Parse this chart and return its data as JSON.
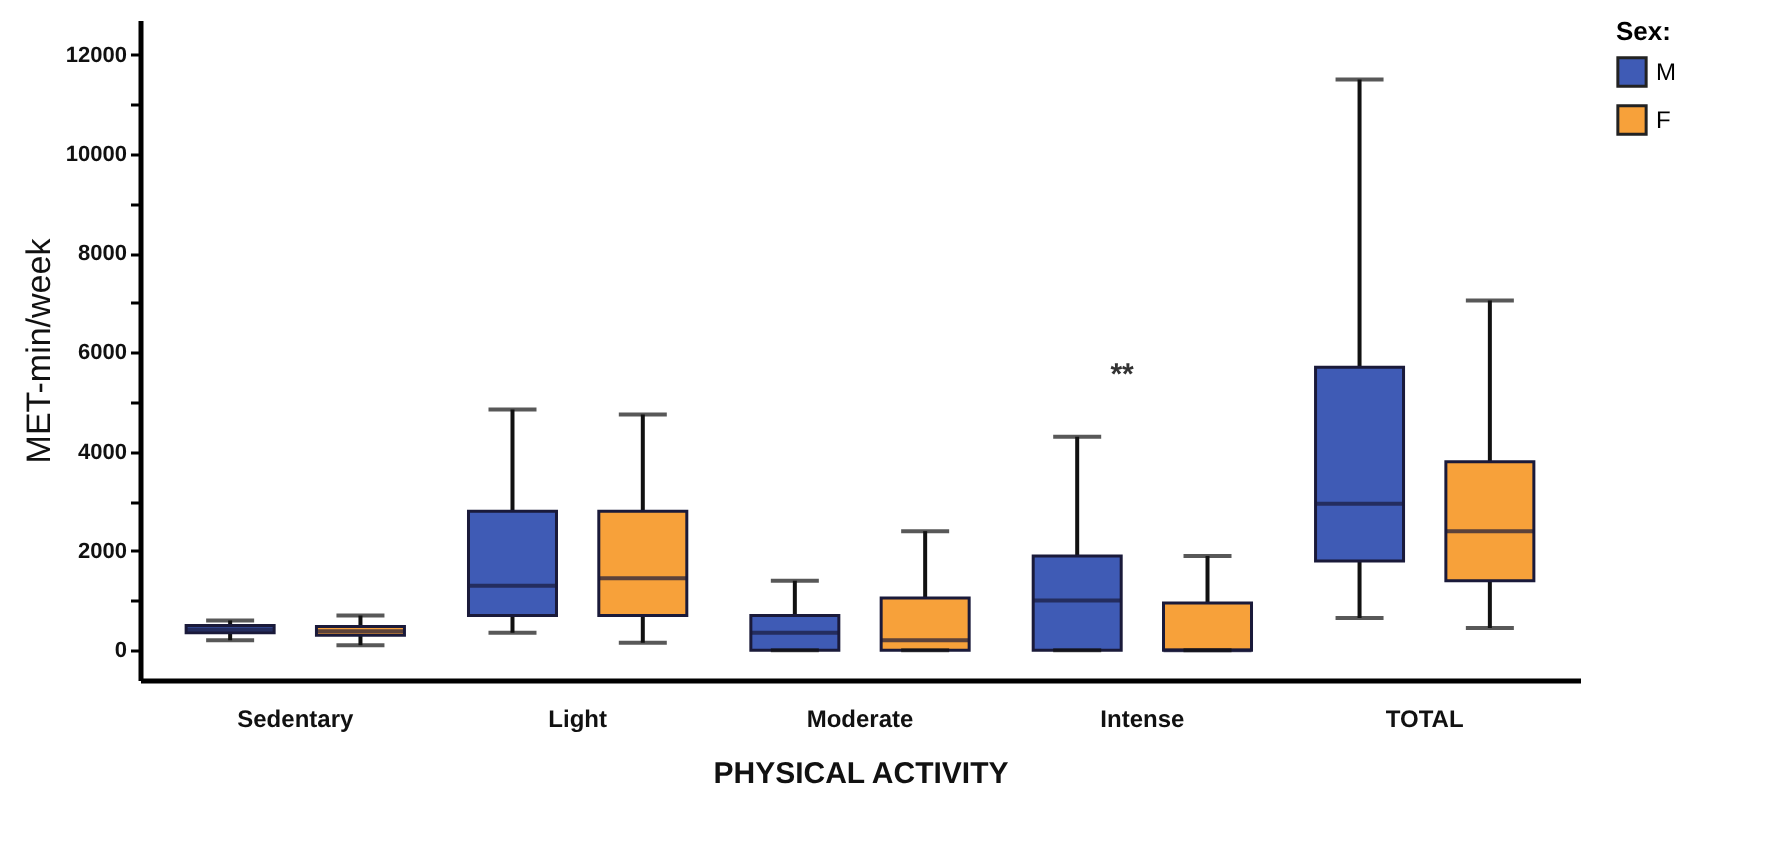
{
  "chart_data": {
    "type": "box",
    "xlabel": "PHYSICAL ACTIVITY",
    "ylabel": "MET-min/week",
    "legend_title": "Sex:",
    "legend": "top right",
    "grid": false,
    "categories": [
      "Sedentary",
      "Light",
      "Moderate",
      "Intense",
      "TOTAL"
    ],
    "ylim": [
      -600,
      12700
    ],
    "yticks": [
      0,
      {
        "value": 1000,
        "label": null
      },
      2000,
      {
        "value": 3000,
        "label": null
      },
      4000,
      {
        "value": 5000,
        "label": null
      },
      6000,
      {
        "value": 7000,
        "label": null
      },
      8000,
      {
        "value": 9000,
        "label": null
      },
      10000,
      {
        "value": 11000,
        "label": null
      },
      12000
    ],
    "series": [
      {
        "name": "M",
        "color": "#3f5bb5",
        "boxes": [
          {
            "low": 200,
            "q1": 350,
            "median": 420,
            "q3": 500,
            "high": 600
          },
          {
            "low": 350,
            "q1": 700,
            "median": 1300,
            "q3": 2800,
            "high": 4850
          },
          {
            "low": 0,
            "q1": 0,
            "median": 350,
            "q3": 700,
            "high": 1400
          },
          {
            "low": 0,
            "q1": 0,
            "median": 1000,
            "q3": 1900,
            "high": 4300
          },
          {
            "low": 650,
            "q1": 1800,
            "median": 2950,
            "q3": 5700,
            "high": 11500
          }
        ]
      },
      {
        "name": "F",
        "color": "#f7a13a",
        "boxes": [
          {
            "low": 100,
            "q1": 300,
            "median": 380,
            "q3": 480,
            "high": 700
          },
          {
            "low": 150,
            "q1": 700,
            "median": 1450,
            "q3": 2800,
            "high": 4750
          },
          {
            "low": 0,
            "q1": 0,
            "median": 200,
            "q3": 1050,
            "high": 2400
          },
          {
            "low": 0,
            "q1": 0,
            "median": 0,
            "q3": 950,
            "high": 1900
          },
          {
            "low": 450,
            "q1": 1400,
            "median": 2400,
            "q3": 3800,
            "high": 7050
          }
        ]
      }
    ],
    "annotations": [
      "**"
    ]
  }
}
